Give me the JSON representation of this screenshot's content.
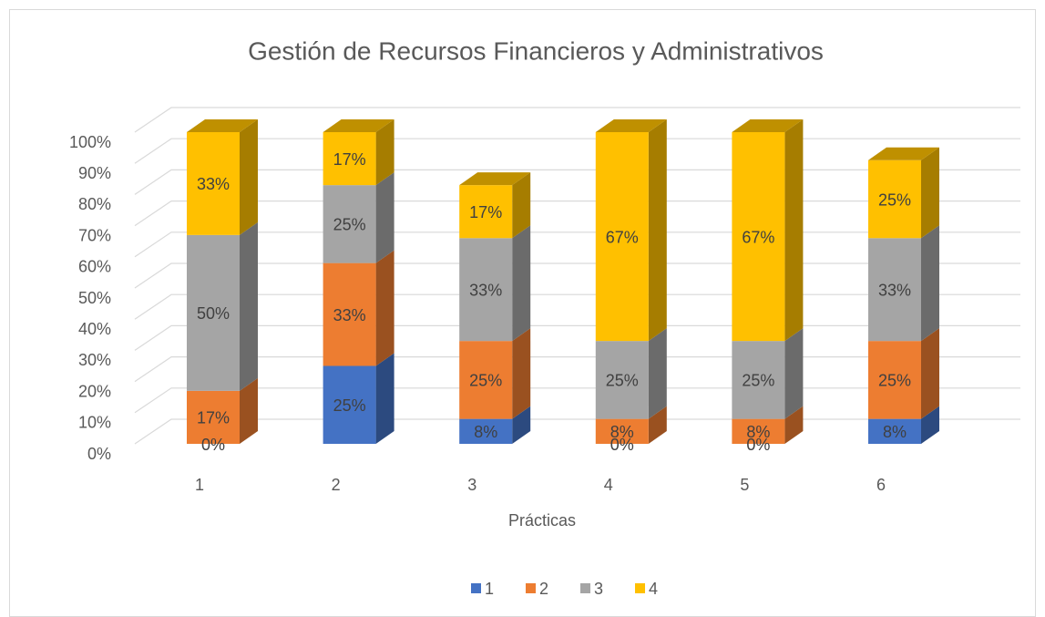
{
  "chart_data": {
    "type": "bar3d_stacked",
    "title": "Gestión de Recursos Financieros y Administrativos",
    "x_label": "Prácticas",
    "categories": [
      "1",
      "2",
      "3",
      "4",
      "5",
      "6"
    ],
    "series": [
      {
        "name": "1",
        "color": "#4472c4",
        "values": [
          0,
          25,
          8,
          0,
          0,
          8
        ],
        "value_labels": [
          "0%",
          "25%",
          "8%",
          "0%",
          "0%",
          "8%"
        ]
      },
      {
        "name": "2",
        "color": "#ed7d31",
        "values": [
          17,
          33,
          25,
          8,
          8,
          25
        ],
        "value_labels": [
          "17%",
          "33%",
          "25%",
          "8%",
          "8%",
          "25%"
        ]
      },
      {
        "name": "3",
        "color": "#a5a5a5",
        "values": [
          50,
          25,
          33,
          25,
          25,
          33
        ],
        "value_labels": [
          "50%",
          "25%",
          "33%",
          "25%",
          "25%",
          "33%"
        ]
      },
      {
        "name": "4",
        "color": "#ffc000",
        "values": [
          33,
          17,
          17,
          67,
          67,
          25
        ],
        "value_labels": [
          "33%",
          "17%",
          "17%",
          "67%",
          "67%",
          "25%"
        ]
      }
    ],
    "ylim": [
      0,
      100
    ],
    "yticks": [
      {
        "value": 0,
        "label": "0%"
      },
      {
        "value": 10,
        "label": "10%"
      },
      {
        "value": 20,
        "label": "20%"
      },
      {
        "value": 30,
        "label": "30%"
      },
      {
        "value": 40,
        "label": "40%"
      },
      {
        "value": 50,
        "label": "50%"
      },
      {
        "value": 60,
        "label": "60%"
      },
      {
        "value": 70,
        "label": "70%"
      },
      {
        "value": 80,
        "label": "80%"
      },
      {
        "value": 90,
        "label": "90%"
      },
      {
        "value": 100,
        "label": "100%"
      }
    ],
    "grid": true,
    "legend": "bottom"
  }
}
